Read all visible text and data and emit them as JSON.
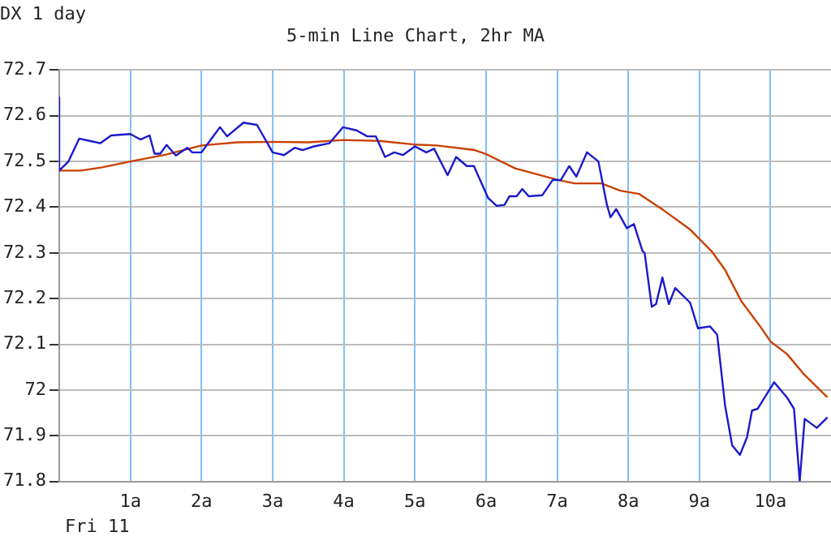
{
  "chart_data": {
    "type": "line",
    "title": "5-min Line Chart, 2hr MA",
    "annotations": [
      "DX 1 day",
      "Fri 11"
    ],
    "xlim": [
      0,
      10.85
    ],
    "xticks": [
      {
        "value": 1,
        "label": "1a"
      },
      {
        "value": 2,
        "label": "2a"
      },
      {
        "value": 3,
        "label": "3a"
      },
      {
        "value": 4,
        "label": "4a"
      },
      {
        "value": 5,
        "label": "5a"
      },
      {
        "value": 6,
        "label": "6a"
      },
      {
        "value": 7,
        "label": "7a"
      },
      {
        "value": 8,
        "label": "8a"
      },
      {
        "value": 9,
        "label": "9a"
      },
      {
        "value": 10,
        "label": "10a"
      }
    ],
    "ylim": [
      71.8,
      72.7
    ],
    "yticks": [
      71.8,
      71.9,
      72,
      72.1,
      72.2,
      72.3,
      72.4,
      72.5,
      72.6,
      72.7
    ],
    "grid": true,
    "legend": false,
    "marker": "none",
    "line_style": "solid",
    "series": [
      {
        "color": "#1a1acc",
        "x": [
          0,
          0,
          0.13,
          0.28,
          0.43,
          0.58,
          0.73,
          1.0,
          1.14,
          1.27,
          1.34,
          1.42,
          1.51,
          1.64,
          1.8,
          1.87,
          2.0,
          2.14,
          2.26,
          2.36,
          2.59,
          2.78,
          3.0,
          3.16,
          3.31,
          3.42,
          3.58,
          3.8,
          3.99,
          4.18,
          4.33,
          4.45,
          4.58,
          4.71,
          4.83,
          5.0,
          5.16,
          5.27,
          5.46,
          5.58,
          5.73,
          5.83,
          6.03,
          6.15,
          6.26,
          6.33,
          6.43,
          6.51,
          6.6,
          6.79,
          6.94,
          7.05,
          7.17,
          7.27,
          7.42,
          7.58,
          7.7,
          7.75,
          7.83,
          7.98,
          8.08,
          8.2,
          8.23,
          8.33,
          8.39,
          8.48,
          8.57,
          8.66,
          8.87,
          8.98,
          9.15,
          9.25,
          9.36,
          9.46,
          9.57,
          9.67,
          9.74,
          9.82,
          10.05,
          10.23,
          10.33,
          10.41,
          10.48,
          10.65,
          10.8
        ],
        "values": [
          72.64,
          72.48,
          72.5,
          72.55,
          72.545,
          72.54,
          72.557,
          72.56,
          72.548,
          72.557,
          72.517,
          72.517,
          72.536,
          72.513,
          72.53,
          72.52,
          72.52,
          72.55,
          72.575,
          72.555,
          72.585,
          72.58,
          72.52,
          72.514,
          72.53,
          72.525,
          72.533,
          72.54,
          72.575,
          72.568,
          72.555,
          72.555,
          72.51,
          72.52,
          72.514,
          72.533,
          72.52,
          72.528,
          72.47,
          72.51,
          72.49,
          72.49,
          72.42,
          72.403,
          72.405,
          72.424,
          72.424,
          72.44,
          72.424,
          72.426,
          72.46,
          72.459,
          72.49,
          72.467,
          72.52,
          72.5,
          72.405,
          72.378,
          72.396,
          72.354,
          72.363,
          72.304,
          72.3,
          72.182,
          72.188,
          72.246,
          72.188,
          72.223,
          72.191,
          72.135,
          72.139,
          72.121,
          71.967,
          71.879,
          71.858,
          71.897,
          71.955,
          71.959,
          72.017,
          71.984,
          71.959,
          71.8,
          71.937,
          71.917,
          71.94
        ]
      },
      {
        "color": "#c84000",
        "x": [
          0,
          0.3,
          0.6,
          1.0,
          1.5,
          2.0,
          2.5,
          3.0,
          3.5,
          4.0,
          4.5,
          5.0,
          5.31,
          5.84,
          5.99,
          6.41,
          6.98,
          7.24,
          7.62,
          7.89,
          8.15,
          8.49,
          8.87,
          9.17,
          9.36,
          9.59,
          9.86,
          10.0,
          10.23,
          10.46,
          10.8
        ],
        "values": [
          72.48,
          72.48,
          72.487,
          72.5,
          72.515,
          72.535,
          72.542,
          72.543,
          72.542,
          72.547,
          72.545,
          72.537,
          72.535,
          72.525,
          72.517,
          72.485,
          72.461,
          72.452,
          72.452,
          72.436,
          72.429,
          72.394,
          72.351,
          72.304,
          72.263,
          72.194,
          72.138,
          72.106,
          72.079,
          72.036,
          71.984
        ]
      }
    ]
  }
}
